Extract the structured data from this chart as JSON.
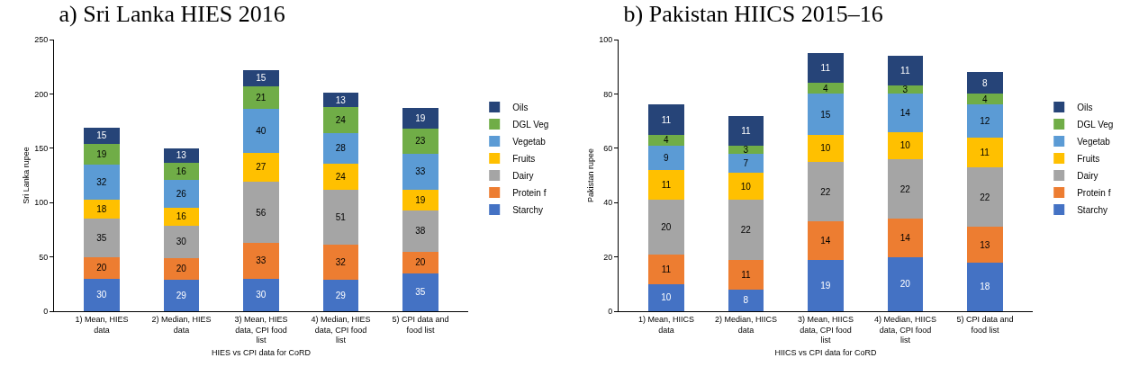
{
  "chart_data": [
    {
      "type": "bar",
      "title": "a) Sri Lanka HIES 2016",
      "xlabel": "HIES vs CPI data for CoRD",
      "ylabel": "Sri Lanka rupee",
      "stacked": true,
      "data_labels": true,
      "legend": "right",
      "grid": false,
      "categories": [
        "1) Mean, HIES data",
        "2) Median, HIES data",
        "3) Mean, HIES data, CPI food list",
        "4) Median, HIES data, CPI food list",
        "5) CPI data and food list"
      ],
      "ylim": [
        0,
        250
      ],
      "yticks": [
        0,
        50,
        100,
        150,
        200,
        250
      ],
      "series": [
        {
          "name": "Starchy",
          "color": "#4472c4",
          "values": [
            30,
            29,
            30,
            29,
            35
          ]
        },
        {
          "name": "Protein f",
          "color": "#ed7d31",
          "values": [
            20,
            20,
            33,
            32,
            20
          ]
        },
        {
          "name": "Dairy",
          "color": "#a5a5a5",
          "values": [
            35,
            30,
            56,
            51,
            38
          ]
        },
        {
          "name": "Fruits",
          "color": "#ffc000",
          "values": [
            18,
            16,
            27,
            24,
            19
          ]
        },
        {
          "name": "Vegetab",
          "color": "#5b9bd5",
          "values": [
            32,
            26,
            40,
            28,
            33
          ]
        },
        {
          "name": "DGL Veg",
          "color": "#70ad47",
          "values": [
            19,
            16,
            21,
            24,
            23
          ]
        },
        {
          "name": "Oils",
          "color": "#264478",
          "values": [
            15,
            13,
            15,
            13,
            19
          ]
        }
      ]
    },
    {
      "type": "bar",
      "title": "b) Pakistan HIICS 2015–16",
      "xlabel": "HIICS vs CPI data for CoRD",
      "ylabel": "Pakistan rupee",
      "stacked": true,
      "data_labels": true,
      "legend": "right",
      "grid": false,
      "categories": [
        "1) Mean, HIICS data",
        "2) Median, HIICS data",
        "3) Mean, HIICS data, CPI food list",
        "4) Median, HIICS data, CPI food list",
        "5) CPI data and food list"
      ],
      "ylim": [
        0,
        100
      ],
      "yticks": [
        0,
        20,
        40,
        60,
        80,
        100
      ],
      "series": [
        {
          "name": "Starchy",
          "color": "#4472c4",
          "values": [
            10,
            8,
            19,
            20,
            18
          ]
        },
        {
          "name": "Protein f",
          "color": "#ed7d31",
          "values": [
            11,
            11,
            14,
            14,
            13
          ]
        },
        {
          "name": "Dairy",
          "color": "#a5a5a5",
          "values": [
            20,
            22,
            22,
            22,
            22
          ]
        },
        {
          "name": "Fruits",
          "color": "#ffc000",
          "values": [
            11,
            10,
            10,
            10,
            11
          ]
        },
        {
          "name": "Vegetab",
          "color": "#5b9bd5",
          "values": [
            9,
            7,
            15,
            14,
            12
          ]
        },
        {
          "name": "DGL Veg",
          "color": "#70ad47",
          "values": [
            4,
            3,
            4,
            3,
            4
          ]
        },
        {
          "name": "Oils",
          "color": "#264478",
          "values": [
            11,
            11,
            11,
            11,
            8
          ]
        }
      ]
    }
  ]
}
